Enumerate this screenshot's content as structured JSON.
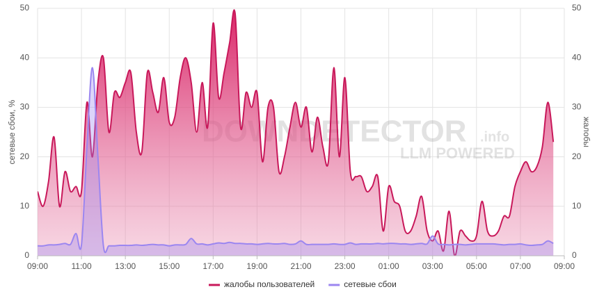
{
  "chart_data": {
    "type": "area",
    "y_label": "сетевые сбои, %",
    "y2_label": "жалобы",
    "watermark": [
      "DOWNDETECTOR",
      ".info",
      "LLM POWERED"
    ],
    "xlim": [
      0,
      24
    ],
    "xticks": [
      {
        "value": 0,
        "label": "09:00"
      },
      {
        "value": 2,
        "label": "11:00"
      },
      {
        "value": 4,
        "label": "13:00"
      },
      {
        "value": 6,
        "label": "15:00"
      },
      {
        "value": 8,
        "label": "17:00"
      },
      {
        "value": 10,
        "label": "19:00"
      },
      {
        "value": 12,
        "label": "21:00"
      },
      {
        "value": 14,
        "label": "23:00"
      },
      {
        "value": 16,
        "label": "01:00"
      },
      {
        "value": 18,
        "label": "03:00"
      },
      {
        "value": 20,
        "label": "05:00"
      },
      {
        "value": 22,
        "label": "07:00"
      },
      {
        "value": 24,
        "label": "09:00"
      }
    ],
    "ylim": [
      0,
      50
    ],
    "yticks": [
      0,
      10,
      20,
      30,
      40,
      50
    ],
    "y2lim": [
      0,
      50
    ],
    "y2ticks": [
      0,
      10,
      20,
      30,
      40,
      50
    ],
    "grid": true,
    "legend": "bottom",
    "x": [
      0,
      0.25,
      0.5,
      0.75,
      1,
      1.25,
      1.5,
      1.75,
      2,
      2.25,
      2.5,
      2.75,
      3,
      3.25,
      3.5,
      3.75,
      4,
      4.25,
      4.5,
      4.75,
      5,
      5.25,
      5.5,
      5.75,
      6,
      6.25,
      6.5,
      6.75,
      7,
      7.25,
      7.5,
      7.75,
      8,
      8.25,
      8.5,
      8.75,
      9,
      9.25,
      9.5,
      9.75,
      10,
      10.25,
      10.5,
      10.75,
      11,
      11.25,
      11.5,
      11.75,
      12,
      12.25,
      12.5,
      12.75,
      13,
      13.25,
      13.5,
      13.75,
      14,
      14.25,
      14.5,
      14.75,
      15,
      15.25,
      15.5,
      15.75,
      16,
      16.25,
      16.5,
      16.75,
      17,
      17.25,
      17.5,
      17.75,
      18,
      18.25,
      18.5,
      18.75,
      19,
      19.25,
      19.5,
      19.75,
      20,
      20.25,
      20.5,
      20.75,
      21,
      21.25,
      21.5,
      21.75,
      22,
      22.25,
      22.5,
      22.75,
      23,
      23.25,
      23.5
    ],
    "series": [
      {
        "name": "жалобы пользователей",
        "color": "#c8185a",
        "axis": "y2",
        "values": [
          13,
          10,
          15,
          24,
          10,
          17,
          13,
          14,
          13,
          31,
          20,
          35,
          40,
          25,
          33,
          32,
          35,
          37,
          25,
          21,
          37,
          33,
          29,
          36,
          27,
          28,
          36,
          40,
          35,
          25,
          35,
          26,
          47,
          32,
          37,
          43,
          49,
          26,
          33,
          30,
          33,
          19,
          30,
          30,
          17,
          20,
          26,
          31,
          26,
          30,
          21,
          28,
          22,
          19,
          38,
          20,
          36,
          17,
          16,
          16,
          13,
          14,
          16,
          5,
          14,
          11,
          10,
          5,
          5,
          8,
          12,
          5,
          3,
          5,
          1,
          9,
          0,
          5,
          4,
          3,
          4,
          11,
          5,
          4,
          5,
          8,
          8,
          14,
          17,
          19,
          17,
          18,
          22,
          31,
          23
        ]
      },
      {
        "name": "сетевые сбои",
        "color": "#9b86f0",
        "values": [
          2,
          2,
          2.2,
          2.2,
          2.3,
          2.5,
          2.3,
          4.5,
          2.2,
          22,
          38,
          20,
          2,
          2,
          2,
          2.1,
          2.1,
          2.1,
          2.2,
          2.1,
          2.2,
          2.3,
          2.2,
          2.2,
          2,
          2.2,
          2.2,
          2.3,
          3.5,
          2.4,
          2.4,
          2.2,
          2.4,
          2.6,
          2.5,
          2.7,
          2.5,
          2.5,
          2.4,
          2.4,
          2.3,
          2.4,
          2.5,
          2.4,
          2.4,
          2.5,
          2.3,
          2.4,
          3,
          2.3,
          2.3,
          2.3,
          2.3,
          2.3,
          2.4,
          2.3,
          2.3,
          2.6,
          2.3,
          2.4,
          2.4,
          2.4,
          2.5,
          2.4,
          2.5,
          2.5,
          2.4,
          2.4,
          2.3,
          2.4,
          2.5,
          2.4,
          4,
          2.4,
          2.3,
          2.2,
          2.3,
          2.3,
          2.2,
          2.3,
          2.4,
          2.4,
          2.4,
          2.4,
          2.3,
          2.2,
          2.3,
          2.3,
          2.4,
          2.2,
          2.1,
          2.2,
          2.3,
          3,
          2.5
        ]
      }
    ]
  }
}
